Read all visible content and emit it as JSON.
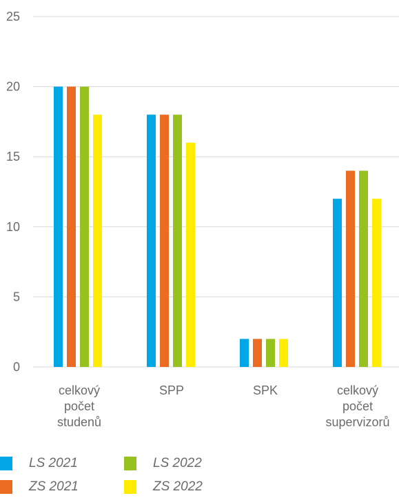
{
  "chart_data": {
    "type": "bar",
    "categories": [
      [
        "celkový",
        "počet",
        "studenů"
      ],
      [
        "SPP"
      ],
      [
        "SPK"
      ],
      [
        "celkový",
        "počet",
        "supervizorů"
      ]
    ],
    "series": [
      {
        "name": "LS 2021",
        "color": "#00a6e6",
        "values": [
          20,
          18,
          2,
          12
        ]
      },
      {
        "name": "ZS 2021",
        "color": "#ec6b23",
        "values": [
          20,
          18,
          2,
          14
        ]
      },
      {
        "name": "LS 2022",
        "color": "#97c11e",
        "values": [
          20,
          18,
          2,
          14
        ]
      },
      {
        "name": "ZS 2022",
        "color": "#ffec00",
        "values": [
          18,
          16,
          2,
          12
        ]
      }
    ],
    "yticks": [
      "0",
      "5",
      "10",
      "15",
      "20",
      "25"
    ],
    "ylim": [
      0,
      25
    ],
    "grid": true,
    "legend_position": "bottom",
    "title": "",
    "xlabel": "",
    "ylabel": ""
  }
}
